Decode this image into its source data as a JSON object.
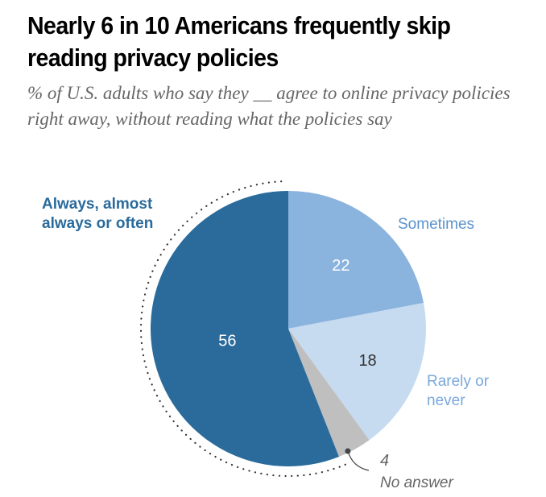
{
  "title": "Nearly 6 in 10 Americans frequently skip reading privacy policies",
  "subtitle": "% of U.S. adults who say they __ agree to online privacy policies right away, without reading what the policies say",
  "chart_data": {
    "type": "pie",
    "title": "Nearly 6 in 10 Americans frequently skip reading privacy policies",
    "subtitle": "% of U.S. adults who say they __ agree to online privacy policies right away, without reading what the policies say",
    "start": "12 o'clock, clockwise",
    "slices": [
      {
        "label": "Sometimes",
        "value": 22,
        "color": "#8ab3de",
        "value_color": "#ffffff"
      },
      {
        "label": "Rarely or never",
        "value": 18,
        "color": "#c6daf0",
        "value_color": "#333333"
      },
      {
        "label": "No answer",
        "value": 4,
        "color": "#bfbfbf",
        "value_color": "#666666"
      },
      {
        "label": "Always, almost always or often",
        "value": 56,
        "color": "#2a6b9c",
        "value_color": "#ffffff"
      }
    ],
    "annotation": "Dotted arc highlights the 'Always, almost always or often' share"
  },
  "labels": {
    "always": "Always, almost always or often",
    "sometimes": "Sometimes",
    "rarely": "Rarely or never",
    "no_answer_value": "4",
    "no_answer": "No answer"
  }
}
